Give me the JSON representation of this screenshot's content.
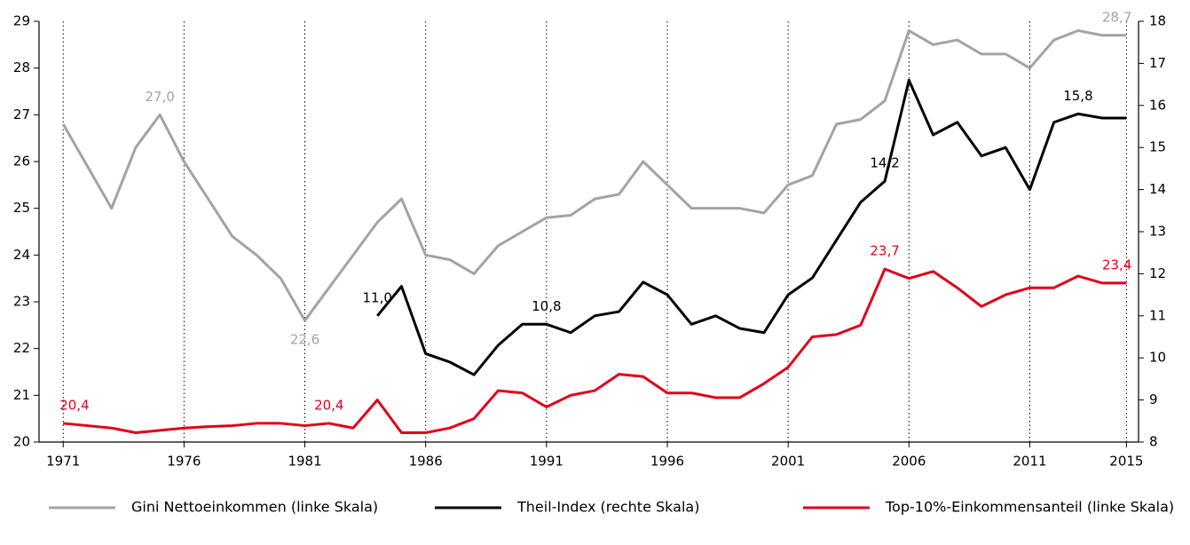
{
  "chart_data": {
    "type": "line",
    "x": [
      1971,
      1972,
      1973,
      1974,
      1975,
      1976,
      1977,
      1978,
      1979,
      1980,
      1981,
      1982,
      1983,
      1984,
      1985,
      1986,
      1987,
      1988,
      1989,
      1990,
      1991,
      1992,
      1993,
      1994,
      1995,
      1996,
      1997,
      1998,
      1999,
      2000,
      2001,
      2002,
      2003,
      2004,
      2005,
      2006,
      2007,
      2008,
      2009,
      2010,
      2011,
      2012,
      2013,
      2014,
      2015
    ],
    "xlim": [
      1970,
      2015.5
    ],
    "xticks": [
      1971,
      1976,
      1981,
      1986,
      1991,
      1996,
      2001,
      2006,
      2011,
      2015
    ],
    "ylim": [
      20,
      29
    ],
    "yticks": [
      20,
      21,
      22,
      23,
      24,
      25,
      26,
      27,
      28,
      29
    ],
    "y2lim": [
      8,
      18
    ],
    "y2ticks": [
      8,
      9,
      10,
      11,
      12,
      13,
      14,
      15,
      16,
      17,
      18
    ],
    "grid": true,
    "legend": "bottom",
    "series": [
      {
        "name": "Gini Nettoeinkommen (linke Skala)",
        "color": "#a3a3a3",
        "axis": "y",
        "values": [
          26.8,
          25.9,
          25.0,
          26.3,
          27.0,
          26.0,
          25.2,
          24.4,
          24.0,
          23.5,
          22.6,
          23.3,
          24.0,
          24.7,
          25.2,
          24.0,
          23.9,
          23.6,
          24.2,
          24.5,
          24.8,
          24.85,
          25.2,
          25.3,
          26.0,
          25.5,
          25.0,
          25.0,
          25.0,
          24.9,
          25.5,
          25.7,
          26.8,
          26.9,
          27.3,
          28.8,
          28.5,
          28.6,
          28.3,
          28.3,
          28.0,
          28.6,
          28.8,
          28.7,
          28.7
        ],
        "value_labels": [
          null,
          null,
          null,
          null,
          "27,0",
          null,
          null,
          null,
          null,
          null,
          "22,6",
          null,
          null,
          null,
          null,
          null,
          null,
          null,
          null,
          null,
          null,
          null,
          null,
          null,
          null,
          null,
          null,
          null,
          null,
          null,
          null,
          null,
          null,
          null,
          null,
          null,
          null,
          null,
          null,
          null,
          null,
          null,
          null,
          null,
          "28,7"
        ]
      },
      {
        "name": "Theil-Index (rechte Skala)",
        "color": "#000000",
        "axis": "y2",
        "values": [
          null,
          null,
          null,
          null,
          null,
          null,
          null,
          null,
          null,
          null,
          null,
          null,
          null,
          11.0,
          11.7,
          10.1,
          9.9,
          9.6,
          10.3,
          10.8,
          10.8,
          10.6,
          11.0,
          11.1,
          11.8,
          11.5,
          10.8,
          11.0,
          10.7,
          10.6,
          11.5,
          11.9,
          12.8,
          13.7,
          14.2,
          16.6,
          15.3,
          15.6,
          14.8,
          15.0,
          14.0,
          15.6,
          15.8,
          15.7,
          15.7
        ],
        "value_labels": [
          null,
          null,
          null,
          null,
          null,
          null,
          null,
          null,
          null,
          null,
          null,
          null,
          null,
          "11,0",
          null,
          null,
          null,
          null,
          null,
          null,
          "10,8",
          null,
          null,
          null,
          null,
          null,
          null,
          null,
          null,
          null,
          null,
          null,
          null,
          null,
          "14,2",
          null,
          null,
          null,
          null,
          null,
          null,
          null,
          "15,8",
          null,
          null
        ]
      },
      {
        "name": "Top-10%-Einkommensanteil (linke Skala)",
        "color": "#e2001a",
        "axis": "y",
        "values": [
          20.4,
          20.35,
          20.3,
          20.2,
          20.25,
          20.3,
          20.33,
          20.35,
          20.4,
          20.4,
          20.35,
          20.4,
          20.3,
          20.9,
          20.2,
          20.2,
          20.3,
          20.5,
          21.1,
          21.05,
          20.75,
          21.0,
          21.1,
          21.45,
          21.4,
          21.05,
          21.05,
          20.95,
          20.95,
          21.25,
          21.6,
          22.25,
          22.3,
          22.5,
          23.7,
          23.5,
          23.65,
          23.3,
          22.9,
          23.15,
          23.3,
          23.3,
          23.55,
          23.4,
          23.4
        ],
        "value_labels": [
          "20,4",
          null,
          null,
          null,
          null,
          null,
          null,
          null,
          null,
          null,
          null,
          "20,4",
          null,
          null,
          null,
          null,
          null,
          null,
          null,
          null,
          null,
          null,
          null,
          null,
          null,
          null,
          null,
          null,
          null,
          null,
          null,
          null,
          null,
          null,
          "23,7",
          null,
          null,
          null,
          null,
          null,
          null,
          null,
          null,
          null,
          "23,4"
        ]
      }
    ]
  }
}
